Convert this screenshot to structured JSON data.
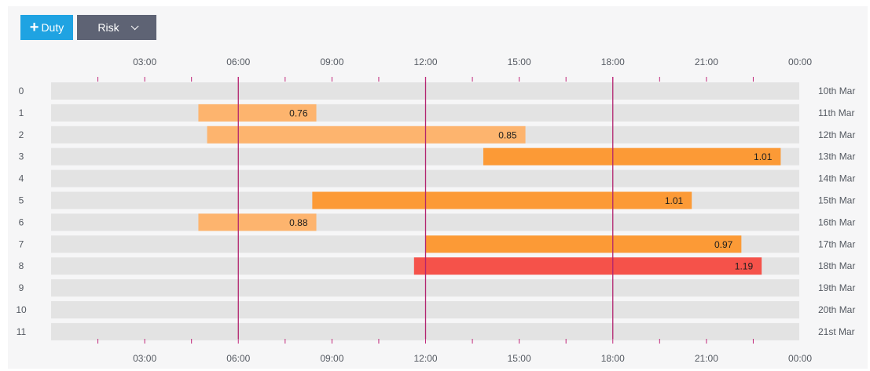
{
  "toolbar": {
    "duty_label": "Duty",
    "risk_label": "Risk"
  },
  "colors": {
    "row_bg": "#e3e3e3",
    "tick": "#c0287a",
    "vline": "#b2236f",
    "low_risk": "#fdb46e",
    "mid_risk": "#fc9a36",
    "high_risk": "#f5524a"
  },
  "chart_data": {
    "type": "gantt",
    "x_unit": "hours",
    "xlim": [
      0,
      24
    ],
    "x_ticks": [
      "03:00",
      "06:00",
      "09:00",
      "12:00",
      "15:00",
      "18:00",
      "21:00",
      "00:00"
    ],
    "x_tick_values": [
      3,
      6,
      9,
      12,
      15,
      18,
      21,
      24
    ],
    "reference_lines": [
      6,
      12,
      18
    ],
    "rows": [
      {
        "index": "0",
        "date": "10th Mar"
      },
      {
        "index": "1",
        "date": "11th Mar"
      },
      {
        "index": "2",
        "date": "12th Mar"
      },
      {
        "index": "3",
        "date": "13th Mar"
      },
      {
        "index": "4",
        "date": "14th Mar"
      },
      {
        "index": "5",
        "date": "15th Mar"
      },
      {
        "index": "6",
        "date": "16th Mar"
      },
      {
        "index": "7",
        "date": "17th Mar"
      },
      {
        "index": "8",
        "date": "18th Mar"
      },
      {
        "index": "9",
        "date": "19th Mar"
      },
      {
        "index": "10",
        "date": "20th Mar"
      },
      {
        "index": "11",
        "date": "21st Mar"
      }
    ],
    "duties": [
      {
        "row": 1,
        "start": 4.72,
        "end": 8.5,
        "risk": "0.76",
        "level": "low_risk"
      },
      {
        "row": 2,
        "start": 5.0,
        "end": 15.2,
        "risk": "0.85",
        "level": "low_risk"
      },
      {
        "row": 3,
        "start": 13.85,
        "end": 23.38,
        "risk": "1.01",
        "level": "mid_risk"
      },
      {
        "row": 5,
        "start": 8.37,
        "end": 20.53,
        "risk": "1.01",
        "level": "mid_risk"
      },
      {
        "row": 6,
        "start": 4.72,
        "end": 8.5,
        "risk": "0.88",
        "level": "low_risk"
      },
      {
        "row": 7,
        "start": 12.0,
        "end": 22.12,
        "risk": "0.97",
        "level": "mid_risk"
      },
      {
        "row": 8,
        "start": 11.63,
        "end": 22.77,
        "risk": "1.19",
        "level": "high_risk"
      }
    ]
  }
}
